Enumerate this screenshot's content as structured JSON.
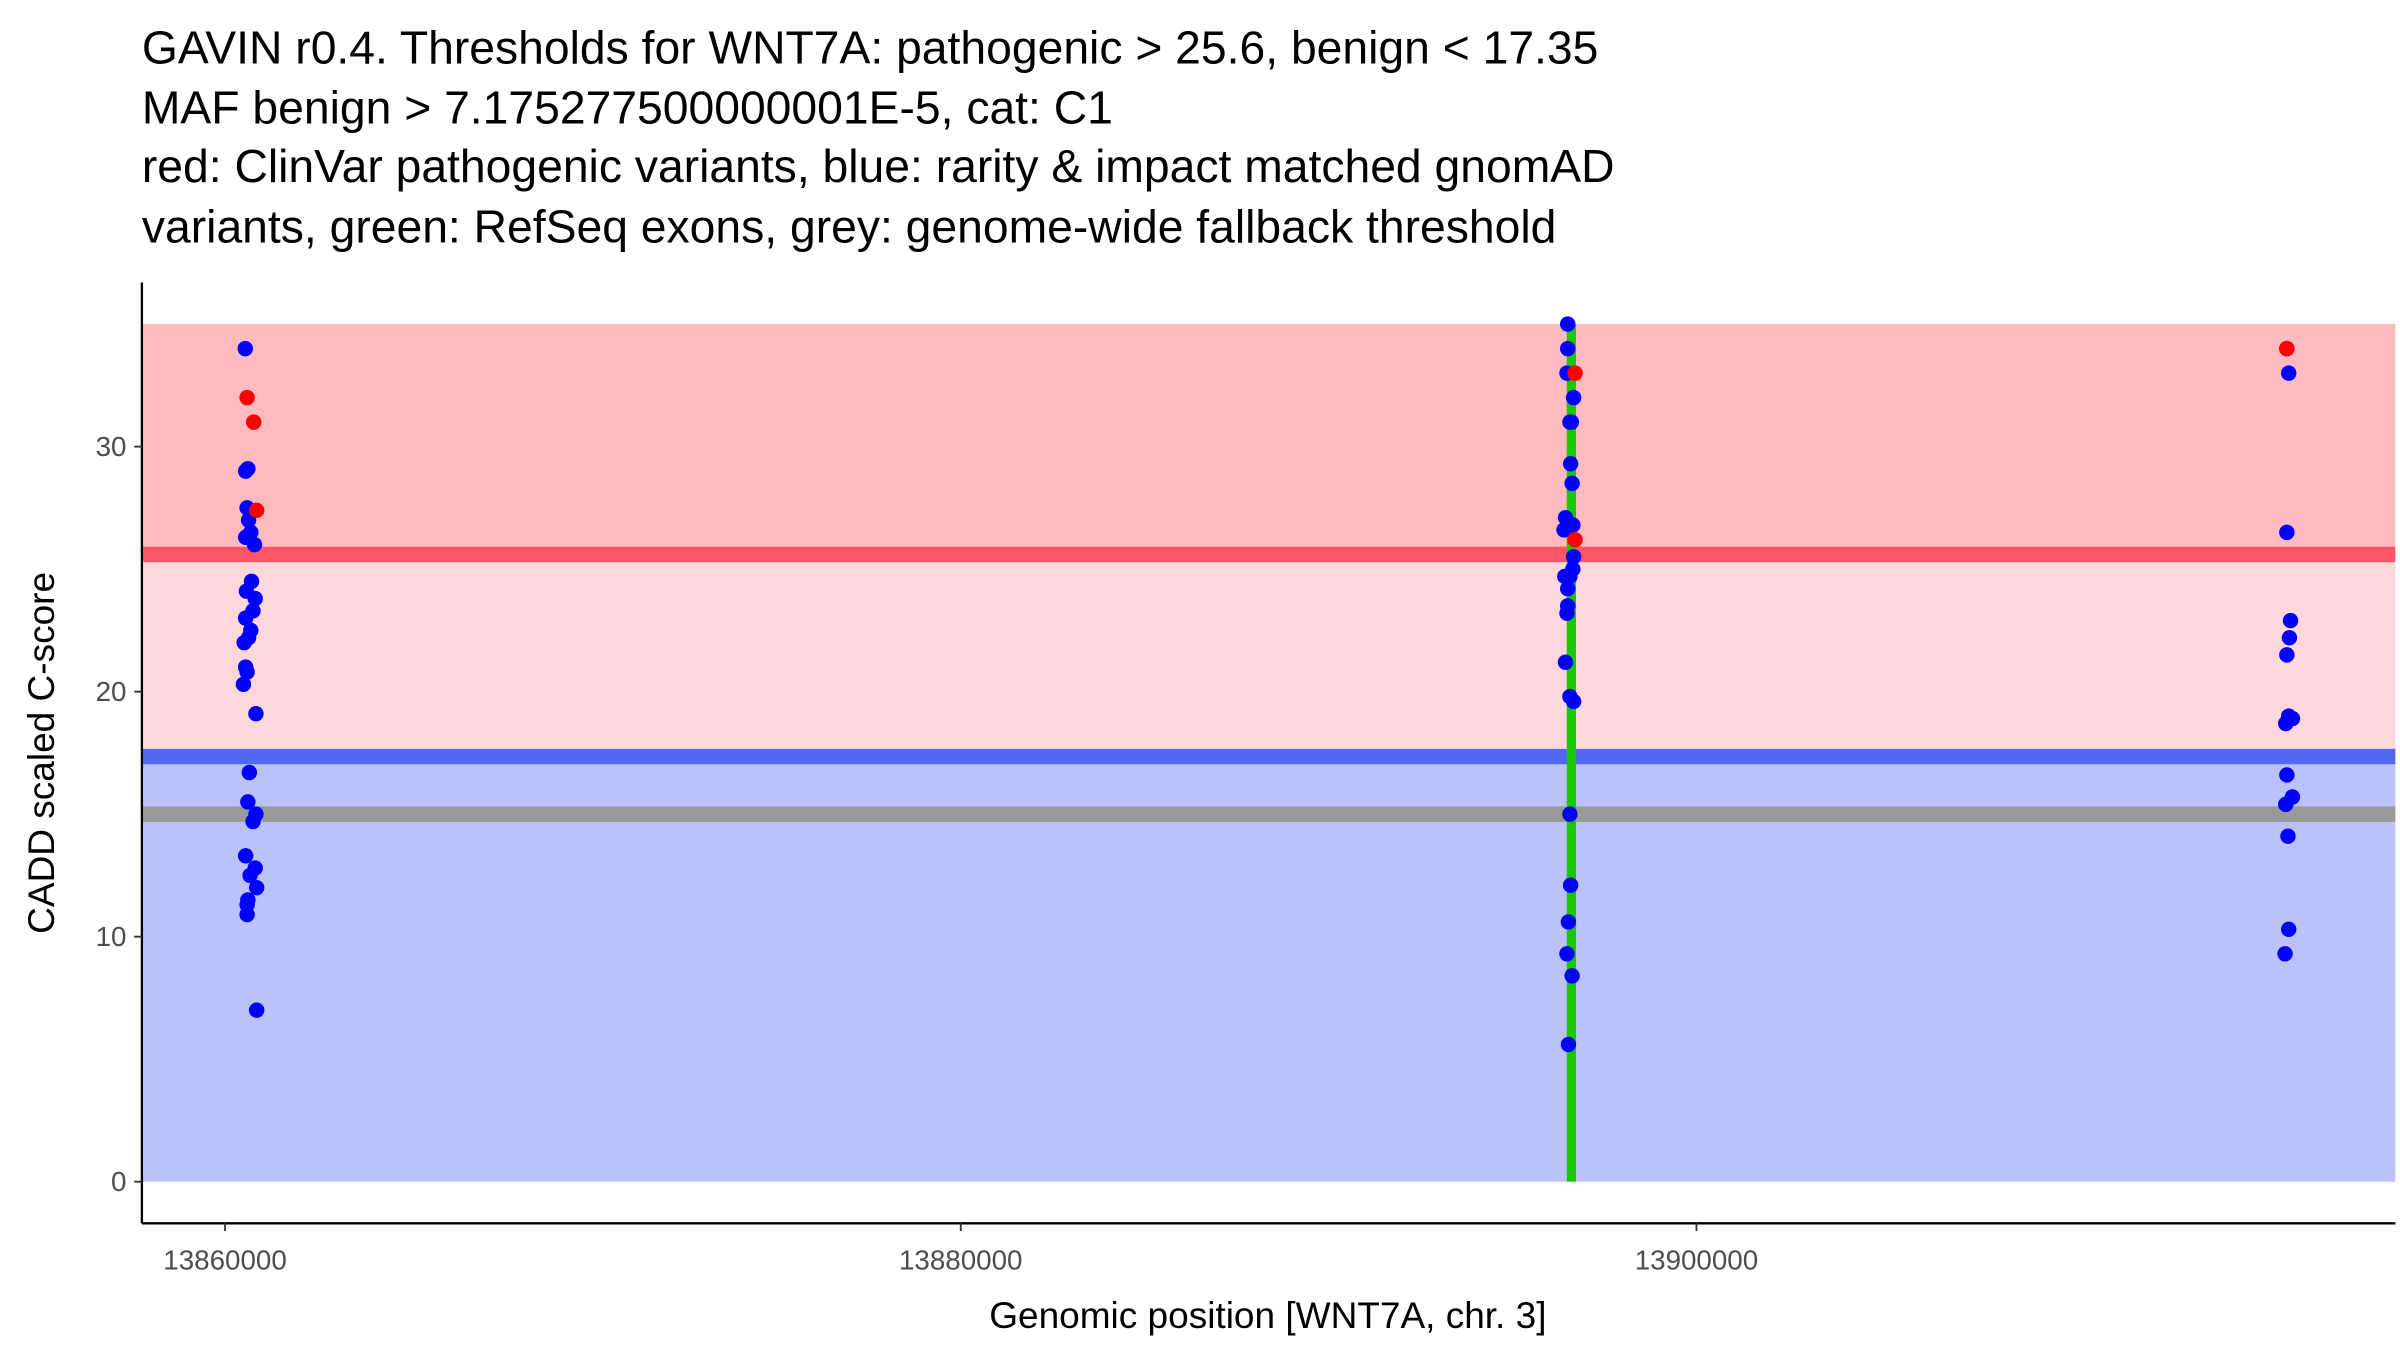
{
  "chart_data": {
    "type": "scatter",
    "title_lines": [
      "GAVIN r0.4. Thresholds for WNT7A: pathogenic > 25.6, benign < 17.35",
      "MAF benign > 7.175277500000001E-5, cat: C1",
      "red: ClinVar pathogenic variants, blue: rarity & impact matched gnomAD",
      "variants, green: RefSeq exons, grey: genome-wide fallback threshold"
    ],
    "xlabel": "Genomic position [WNT7A, chr. 3]",
    "ylabel": "CADD scaled C-score",
    "xlim": [
      13857740,
      13919000
    ],
    "ylim": [
      -1.7,
      36.7
    ],
    "x_ticks": [
      13860000,
      13880000,
      13900000
    ],
    "x_tick_labels": [
      "13860000",
      "13880000",
      "13900000"
    ],
    "y_ticks": [
      0,
      10,
      20,
      30
    ],
    "y_tick_labels": [
      "0",
      "10",
      "20",
      "30"
    ],
    "thresholds": {
      "pathogenic": 25.6,
      "benign": 17.35,
      "genome_wide_fallback": 15,
      "max_score": 35
    },
    "exons": [
      {
        "start": 13896500,
        "end": 13896700
      }
    ],
    "colors": {
      "pathogenic_band": "#fdbbc0",
      "middle_band": "#fdd7dc",
      "benign_band": "#bbc1f9",
      "pathogenic_line": "#fd5767",
      "benign_line": "#5268f0",
      "fallback_line": "#999999",
      "exon": "#1ac800",
      "gnomad": "#0000ff",
      "clinvar": "#ff0000"
    },
    "series": [
      {
        "name": "gnomAD",
        "color": "#0000ff",
        "points": [
          [
            13860550,
            34
          ],
          [
            13860620,
            29.1
          ],
          [
            13860560,
            29
          ],
          [
            13860600,
            27.5
          ],
          [
            13860640,
            27
          ],
          [
            13860700,
            26.5
          ],
          [
            13860560,
            26.3
          ],
          [
            13860800,
            26
          ],
          [
            13860720,
            24.5
          ],
          [
            13860580,
            24.1
          ],
          [
            13860820,
            23.8
          ],
          [
            13860760,
            23.3
          ],
          [
            13860560,
            23
          ],
          [
            13860700,
            22.5
          ],
          [
            13860520,
            22
          ],
          [
            13860640,
            22.2
          ],
          [
            13860560,
            21
          ],
          [
            13860600,
            20.8
          ],
          [
            13860500,
            20.3
          ],
          [
            13860840,
            19.1
          ],
          [
            13860660,
            16.7
          ],
          [
            13860620,
            15.5
          ],
          [
            13860840,
            15
          ],
          [
            13860760,
            14.7
          ],
          [
            13860560,
            13.3
          ],
          [
            13860820,
            12.8
          ],
          [
            13860680,
            12.5
          ],
          [
            13860860,
            12
          ],
          [
            13860620,
            11.5
          ],
          [
            13860600,
            11.3
          ],
          [
            13860600,
            10.9
          ],
          [
            13860860,
            7
          ],
          [
            13896500,
            35
          ],
          [
            13896500,
            34
          ],
          [
            13896480,
            33
          ],
          [
            13896660,
            32
          ],
          [
            13896600,
            31
          ],
          [
            13896560,
            31
          ],
          [
            13896580,
            29.3
          ],
          [
            13896620,
            28.5
          ],
          [
            13896440,
            27.1
          ],
          [
            13896640,
            26.8
          ],
          [
            13896400,
            26.6
          ],
          [
            13896660,
            25.5
          ],
          [
            13896640,
            25
          ],
          [
            13896420,
            24.7
          ],
          [
            13896560,
            24.7
          ],
          [
            13896500,
            24.2
          ],
          [
            13896500,
            23.5
          ],
          [
            13896480,
            23.2
          ],
          [
            13896440,
            21.2
          ],
          [
            13896560,
            19.8
          ],
          [
            13896660,
            19.6
          ],
          [
            13896560,
            15
          ],
          [
            13896580,
            12.1
          ],
          [
            13896520,
            10.6
          ],
          [
            13896480,
            9.3
          ],
          [
            13896620,
            8.4
          ],
          [
            13896520,
            5.6
          ],
          [
            13916050,
            34
          ],
          [
            13916100,
            33
          ],
          [
            13916050,
            26.5
          ],
          [
            13916150,
            22.9
          ],
          [
            13916120,
            22.2
          ],
          [
            13916050,
            21.5
          ],
          [
            13916100,
            19
          ],
          [
            13916200,
            18.9
          ],
          [
            13916020,
            18.7
          ],
          [
            13916050,
            16.6
          ],
          [
            13916200,
            15.7
          ],
          [
            13916020,
            15.4
          ],
          [
            13916080,
            14.1
          ],
          [
            13916100,
            10.3
          ],
          [
            13916000,
            9.3
          ]
        ]
      },
      {
        "name": "ClinVar",
        "color": "#ff0000",
        "points": [
          [
            13860600,
            32
          ],
          [
            13860780,
            31
          ],
          [
            13860860,
            27.4
          ],
          [
            13896700,
            33
          ],
          [
            13896700,
            26.2
          ],
          [
            13916050,
            34
          ]
        ]
      }
    ]
  }
}
